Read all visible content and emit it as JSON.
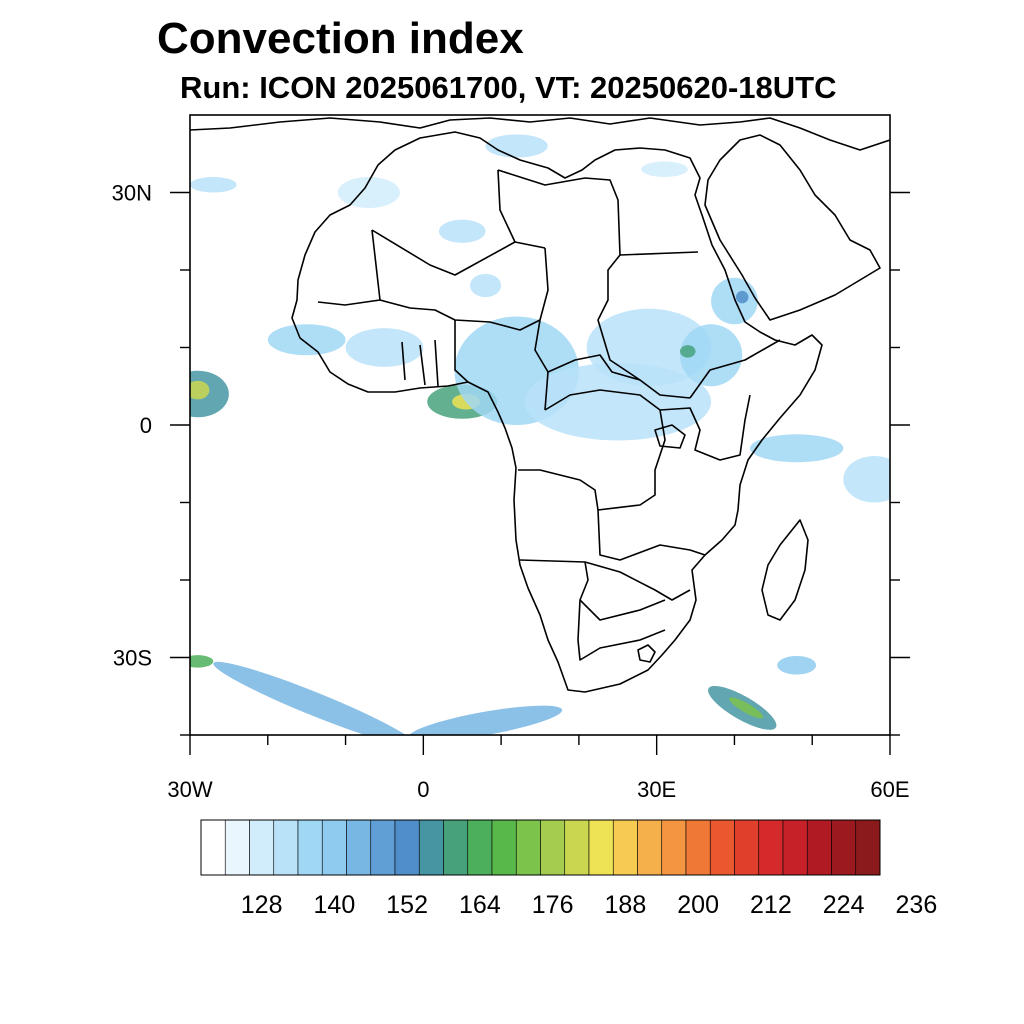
{
  "title": "Convection index",
  "subtitle": "Run: ICON 2025061700,  VT: 20250620-18UTC",
  "map": {
    "projection": "lat-lon",
    "lon_range": [
      -30,
      60
    ],
    "lat_range": [
      -40,
      40
    ],
    "lon_ticks": [
      {
        "value": -30,
        "label": "30W"
      },
      {
        "value": 0,
        "label": "0"
      },
      {
        "value": 30,
        "label": "30E"
      },
      {
        "value": 60,
        "label": "60E"
      }
    ],
    "lat_ticks": [
      {
        "value": 30,
        "label": "30N"
      },
      {
        "value": 0,
        "label": "0"
      },
      {
        "value": -30,
        "label": "30S"
      }
    ],
    "minor_lon_ticks": [
      -20,
      -10,
      10,
      20,
      40,
      50
    ],
    "minor_lat_ticks": [
      20,
      10,
      -10,
      -20,
      -40
    ]
  },
  "colorbar": {
    "colors": [
      "#ffffff",
      "#eaf6fd",
      "#d1ecfb",
      "#b9e2f9",
      "#a0d7f5",
      "#8ecbee",
      "#78b6e3",
      "#5f9fd6",
      "#4f8ec8",
      "#4596a2",
      "#47a27c",
      "#4caf5b",
      "#58b94a",
      "#7cc34c",
      "#a5cc4f",
      "#cbd650",
      "#eee354",
      "#f6cb52",
      "#f6b04b",
      "#f39541",
      "#ef7836",
      "#e9582e",
      "#e0402b",
      "#d42a2b",
      "#c62129",
      "#b01a23",
      "#9c1a1f",
      "#8b1a1c"
    ],
    "labels": [
      "128",
      "140",
      "152",
      "164",
      "176",
      "188",
      "200",
      "212",
      "224",
      "236"
    ],
    "label_positions": [
      2.5,
      5.5,
      8.5,
      11.5,
      14.5,
      17.5,
      20.5,
      23.5,
      26.5,
      29.5
    ]
  },
  "convection_areas": [
    {
      "lon": -29,
      "lat": 4,
      "rx": 4,
      "ry": 3,
      "level": 9
    },
    {
      "lon": -29,
      "lat": 4.5,
      "rx": 1.5,
      "ry": 1.2,
      "level": 15
    },
    {
      "lon": 5,
      "lat": 3,
      "rx": 4.5,
      "ry": 2.2,
      "level": 10
    },
    {
      "lon": 5.5,
      "lat": 3,
      "rx": 1.8,
      "ry": 1,
      "level": 16
    },
    {
      "lon": 12,
      "lat": 7,
      "rx": 8,
      "ry": 7,
      "level": 4
    },
    {
      "lon": 25,
      "lat": 3,
      "rx": 12,
      "ry": 5,
      "level": 3
    },
    {
      "lon": 29,
      "lat": 10,
      "rx": 8,
      "ry": 5,
      "level": 3
    },
    {
      "lon": 37,
      "lat": 9,
      "rx": 4,
      "ry": 4,
      "level": 4
    },
    {
      "lon": 34,
      "lat": 9.5,
      "rx": 1,
      "ry": 0.8,
      "level": 10
    },
    {
      "lon": 40,
      "lat": 16,
      "rx": 3,
      "ry": 3,
      "level": 4
    },
    {
      "lon": 41,
      "lat": 16.5,
      "rx": 0.8,
      "ry": 0.8,
      "level": 8
    },
    {
      "lon": 48,
      "lat": -3,
      "rx": 6,
      "ry": 1.8,
      "level": 4
    },
    {
      "lon": 58,
      "lat": -7,
      "rx": 4,
      "ry": 3,
      "level": 3
    },
    {
      "lon": -15,
      "lat": 11,
      "rx": 5,
      "ry": 2,
      "level": 4
    },
    {
      "lon": -5,
      "lat": 10,
      "rx": 5,
      "ry": 2.5,
      "level": 3
    },
    {
      "lon": 5,
      "lat": 25,
      "rx": 3,
      "ry": 1.5,
      "level": 3
    },
    {
      "lon": 8,
      "lat": 18,
      "rx": 2,
      "ry": 1.5,
      "level": 3
    },
    {
      "lon": -7,
      "lat": 30,
      "rx": 4,
      "ry": 2,
      "level": 2
    },
    {
      "lon": 12,
      "lat": 36,
      "rx": 4,
      "ry": 1.5,
      "level": 3
    },
    {
      "lon": 31,
      "lat": 33,
      "rx": 3,
      "ry": 1,
      "level": 2
    },
    {
      "lon": 48,
      "lat": -31,
      "rx": 2.5,
      "ry": 1.2,
      "level": 5
    },
    {
      "lon": 41,
      "lat": -36.5,
      "rx": 5,
      "ry": 1.5,
      "level": 9,
      "rot": 30
    },
    {
      "lon": 41.5,
      "lat": -36.5,
      "rx": 2.5,
      "ry": 0.6,
      "level": 13,
      "rot": 30
    },
    {
      "lon": -14,
      "lat": -36,
      "rx": 14,
      "ry": 1.5,
      "level": 6,
      "rot": 22
    },
    {
      "lon": 8,
      "lat": -38.5,
      "rx": 10,
      "ry": 1.5,
      "level": 6,
      "rot": -10
    },
    {
      "lon": -27,
      "lat": 31,
      "rx": 3,
      "ry": 1,
      "level": 3
    },
    {
      "lon": -29,
      "lat": -30.5,
      "rx": 2,
      "ry": 0.8,
      "level": 11
    }
  ]
}
